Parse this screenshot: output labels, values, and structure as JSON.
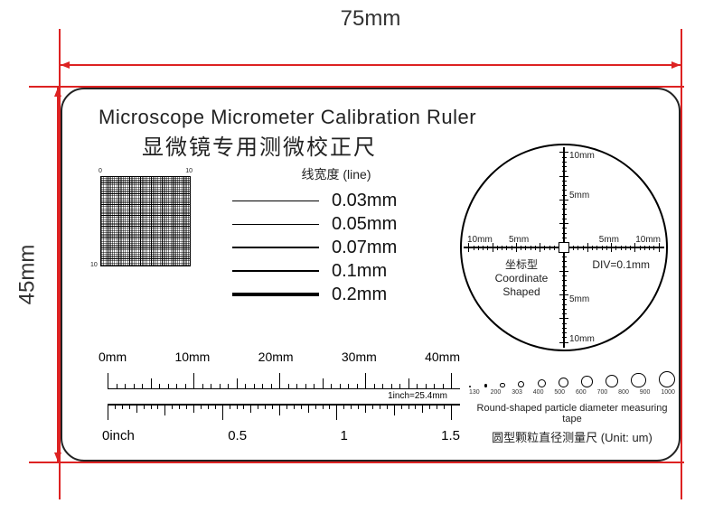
{
  "dimensions": {
    "width_label": "75mm",
    "height_label": "45mm",
    "dim_color": "#dd2222",
    "text_color": "#333333"
  },
  "title": {
    "en": "Microscope Micrometer Calibration Ruler",
    "cn": "显微镜专用测微校正尺"
  },
  "grid": {
    "corner_tl": "0",
    "corner_tr": "10",
    "corner_bl": "10"
  },
  "line_width": {
    "header": "线宽度 (line)",
    "rows": [
      {
        "thickness_px": 0.6,
        "label": "0.03mm"
      },
      {
        "thickness_px": 1.0,
        "label": "0.05mm"
      },
      {
        "thickness_px": 1.5,
        "label": "0.07mm"
      },
      {
        "thickness_px": 2.2,
        "label": "0.1mm"
      },
      {
        "thickness_px": 3.8,
        "label": "0.2mm"
      }
    ]
  },
  "ruler": {
    "mm_labels": [
      "0mm",
      "10mm",
      "20mm",
      "30mm",
      "40mm"
    ],
    "mm_major_count": 4,
    "mm_minor_per_major": 10,
    "inch_labels": [
      "0inch",
      "0.5",
      "1",
      "1.5"
    ],
    "inch_major_count": 3,
    "inch_minor_per_half": 16,
    "conversion_note": "1inch=25.4mm"
  },
  "reticle": {
    "top_label": "10mm",
    "mid_top_label": "5mm",
    "bottom_label": "10mm",
    "mid_bottom_label": "5mm",
    "left_label": "10mm",
    "mid_left_label": "5mm",
    "right_label": "10mm",
    "mid_right_label": "5mm",
    "text_cn": "坐标型",
    "text_en1": "Coordinate",
    "text_en2": "Shaped",
    "div_label": "DIV=0.1mm",
    "arm_ticks_each_side": 20
  },
  "particles": {
    "values_um": [
      130,
      200,
      303,
      400,
      500,
      600,
      700,
      800,
      900,
      1000
    ],
    "caption_en": "Round-shaped particle diameter measuring tape",
    "caption_cn": "圆型颗粒直径测量尺 (Unit: um)"
  }
}
